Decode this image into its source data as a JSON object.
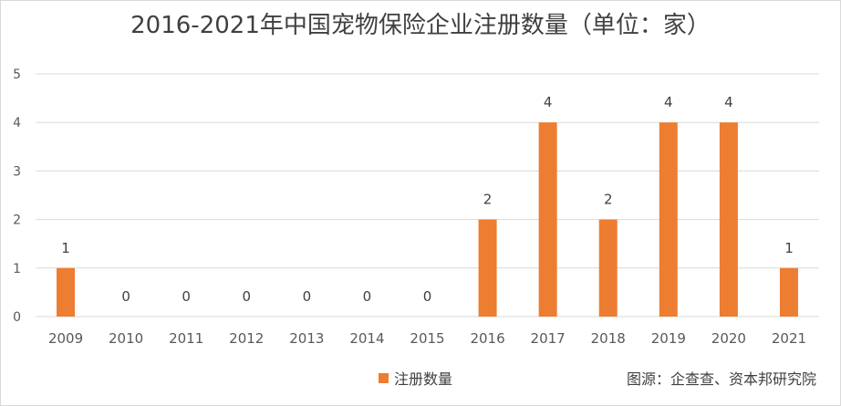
{
  "chart_data": {
    "type": "bar",
    "title": "2016-2021年中国宠物保险企业注册数量（单位：家）",
    "categories": [
      "2009",
      "2010",
      "2011",
      "2012",
      "2013",
      "2014",
      "2015",
      "2016",
      "2017",
      "2018",
      "2019",
      "2020",
      "2021"
    ],
    "series": [
      {
        "name": "注册数量",
        "values": [
          1,
          0,
          0,
          0,
          0,
          0,
          0,
          2,
          4,
          2,
          4,
          4,
          1
        ]
      }
    ],
    "ylim": [
      0,
      5
    ],
    "yticks": [
      0,
      1,
      2,
      3,
      4,
      5
    ],
    "grid": true,
    "legend_position": "bottom",
    "bar_color": "#ed7d31",
    "grid_color": "#d9d9d9"
  },
  "source_text": "图源：企查查、资本邦研究院"
}
